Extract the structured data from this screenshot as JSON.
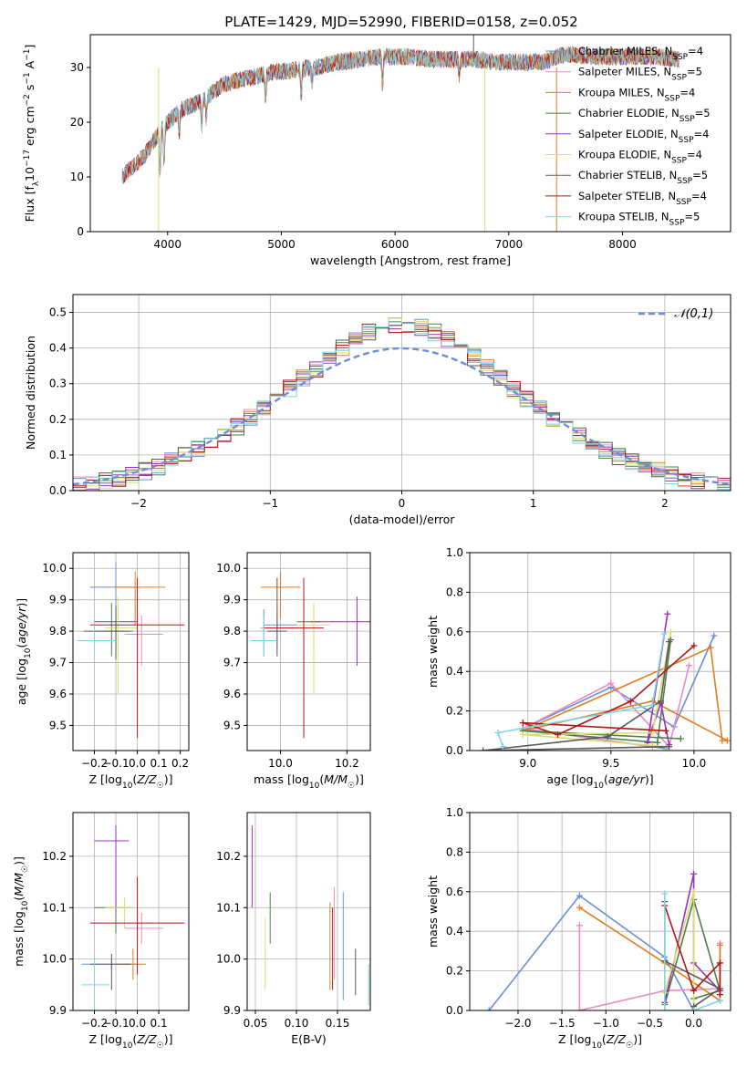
{
  "figure_title": "PLATE=1429, MJD=52990, FIBERID=0158, z=0.052",
  "colors": [
    "#6a8fd8",
    "#e88cc6",
    "#e07d22",
    "#4e7f4a",
    "#9a2fc0",
    "#d8e06a",
    "#5a5a5a",
    "#b01818",
    "#7fd6dc"
  ],
  "chart_data": [
    {
      "id": "spectrum",
      "type": "line",
      "xlabel": "wavelength [Angstrom, rest frame]",
      "ylabel": "Flux [f_λ10^-17 erg cm^-2 s^-1 A^-1]",
      "xlim": [
        3320,
        8950
      ],
      "ylim": [
        0,
        36
      ],
      "xticks": [
        4000,
        5000,
        6000,
        7000,
        8000
      ],
      "yticks": [
        0,
        10,
        20,
        30
      ],
      "grid": false,
      "legend_position": "top-right",
      "legend": [
        {
          "base": "Chabrier MILES, N",
          "sub": "SSP",
          "tail": "=4"
        },
        {
          "base": "Salpeter MILES, N",
          "sub": "SSP",
          "tail": "=5"
        },
        {
          "base": "Kroupa MILES, N",
          "sub": "SSP",
          "tail": "=4"
        },
        {
          "base": "Chabrier ELODIE, N",
          "sub": "SSP",
          "tail": "=5"
        },
        {
          "base": "Salpeter ELODIE, N",
          "sub": "SSP",
          "tail": "=4"
        },
        {
          "base": "Kroupa ELODIE, N",
          "sub": "SSP",
          "tail": "=4"
        },
        {
          "base": "Chabrier STELIB, N",
          "sub": "SSP",
          "tail": "=5"
        },
        {
          "base": "Salpeter STELIB, N",
          "sub": "SSP",
          "tail": "=4"
        },
        {
          "base": "Kroupa STELIB, N",
          "sub": "SSP",
          "tail": "=5"
        }
      ],
      "continuum": {
        "x": [
          3600,
          3800,
          3950,
          4100,
          4300,
          4500,
          4700,
          4900,
          5100,
          5300,
          5500,
          5700,
          5900,
          6100,
          6300,
          6500,
          6700,
          6900,
          7100,
          7300,
          7500,
          7700,
          7900,
          8100,
          8300,
          8500
        ],
        "y": [
          10,
          14,
          19,
          22,
          24,
          27,
          28,
          29,
          29.5,
          30,
          31,
          31.5,
          32,
          32,
          31.5,
          31.5,
          31.5,
          31,
          31,
          31,
          32.5,
          32,
          32,
          32,
          32,
          31.5
        ]
      },
      "dips": [
        {
          "x": 3933,
          "depth": 8
        },
        {
          "x": 3968,
          "depth": 7
        },
        {
          "x": 4102,
          "depth": 4
        },
        {
          "x": 4300,
          "depth": 5
        },
        {
          "x": 4340,
          "depth": 4
        },
        {
          "x": 4861,
          "depth": 4
        },
        {
          "x": 5175,
          "depth": 5
        },
        {
          "x": 5270,
          "depth": 3
        },
        {
          "x": 5890,
          "depth": 6
        },
        {
          "x": 6563,
          "depth": 3
        }
      ],
      "spikes": [
        {
          "x": 3920,
          "min": 0,
          "color_index": 5
        },
        {
          "x": 6790,
          "min": 0,
          "color_index": 5
        },
        {
          "x": 7420,
          "min": 0,
          "color_index": 2
        },
        {
          "x": 6690,
          "max": 36,
          "color_index": 6
        }
      ]
    },
    {
      "id": "residuals",
      "type": "histogram",
      "xlabel": "(data-model)/error",
      "ylabel": "Normed distribution",
      "xlim": [
        -2.5,
        2.5
      ],
      "ylim": [
        0,
        0.55
      ],
      "xticks": [
        -2,
        -1,
        0,
        1,
        2
      ],
      "yticks": [
        0.0,
        0.1,
        0.2,
        0.3,
        0.4,
        0.5
      ],
      "grid": true,
      "bin_width": 0.1,
      "legend_label": "𝒩(0,1)",
      "legend_position": "top-right",
      "normal_curve": {
        "mean": 0,
        "sigma": 1,
        "color": "#6a8fd8",
        "dashed": true
      }
    },
    {
      "id": "age-vs-Z",
      "type": "errorbar",
      "xlabel": "Z [log10(Z/Z☉)]",
      "ylabel": "age [log10(age/yr)]",
      "xlim": [
        -0.3,
        0.24
      ],
      "ylim": [
        9.42,
        10.05
      ],
      "xticks": [
        -0.2,
        -0.1,
        0.0,
        0.1,
        0.2
      ],
      "yticks": [
        9.5,
        9.6,
        9.7,
        9.8,
        9.9,
        10.0
      ],
      "grid": true,
      "points": [
        {
          "x": -0.1,
          "xerr": [
            0.12,
            0.1
          ],
          "y": 9.94,
          "yerr": [
            0.1,
            0.08
          ]
        },
        {
          "x": 0.02,
          "xerr": [
            0.08,
            0.1
          ],
          "y": 9.79,
          "yerr": [
            0.1,
            0.06
          ]
        },
        {
          "x": -0.01,
          "xerr": [
            0.1,
            0.14
          ],
          "y": 9.94,
          "yerr": [
            0.12,
            0.05
          ]
        },
        {
          "x": -0.12,
          "xerr": [
            0.08,
            0.1
          ],
          "y": 9.8,
          "yerr": [
            0.08,
            0.09
          ]
        },
        {
          "x": -0.1,
          "xerr": [
            0.1,
            0.1
          ],
          "y": 9.83,
          "yerr": [
            0.08,
            0.05
          ]
        },
        {
          "x": -0.09,
          "xerr": [
            0.06,
            0.09
          ],
          "y": 9.81,
          "yerr": [
            0.21,
            0.1
          ]
        },
        {
          "x": -0.1,
          "xerr": [
            0.15,
            0.06
          ],
          "y": 9.8,
          "yerr": [
            0.09,
            0.08
          ]
        },
        {
          "x": 0.0,
          "xerr": [
            0.22,
            0.22
          ],
          "y": 9.82,
          "yerr": [
            0.36,
            0.15
          ]
        },
        {
          "x": -0.2,
          "xerr": [
            0.08,
            0.1
          ],
          "y": 9.77,
          "yerr": [
            0.05,
            0.05
          ]
        }
      ]
    },
    {
      "id": "age-vs-mass",
      "type": "errorbar",
      "xlabel": "mass [log10(M/M☉)]",
      "ylabel": "",
      "xlim": [
        9.9,
        10.27
      ],
      "ylim": [
        9.42,
        10.05
      ],
      "xticks": [
        10.0,
        10.2
      ],
      "yticks": [
        9.5,
        9.6,
        9.7,
        9.8,
        9.9,
        10.0
      ],
      "grid": true,
      "points": [
        {
          "x": 9.95,
          "xerr": [
            0.0,
            0.1
          ],
          "y": 9.82,
          "yerr": [
            0.1,
            0.05
          ]
        },
        {
          "x": 9.99,
          "xerr": [
            0.05,
            0.05
          ],
          "y": 9.81,
          "yerr": [
            0.06,
            0.06
          ]
        },
        {
          "x": 10.0,
          "xerr": [
            0.06,
            0.06
          ],
          "y": 9.94,
          "yerr": [
            0.1,
            0.05
          ]
        },
        {
          "x": 10.1,
          "xerr": [
            0.05,
            0.02
          ],
          "y": 9.83,
          "yerr": [
            0.08,
            0.05
          ]
        },
        {
          "x": 10.23,
          "xerr": [
            0.14,
            0.06
          ],
          "y": 9.83,
          "yerr": [
            0.14,
            0.08
          ]
        },
        {
          "x": 10.1,
          "xerr": [
            0.05,
            0.05
          ],
          "y": 9.82,
          "yerr": [
            0.22,
            0.07
          ]
        },
        {
          "x": 9.99,
          "xerr": [
            0.03,
            0.03
          ],
          "y": 9.8,
          "yerr": [
            0.08,
            0.17
          ]
        },
        {
          "x": 10.07,
          "xerr": [
            0.12,
            0.06
          ],
          "y": 9.81,
          "yerr": [
            0.35,
            0.16
          ]
        },
        {
          "x": 9.95,
          "xerr": [
            0.04,
            0.04
          ],
          "y": 9.77,
          "yerr": [
            0.05,
            0.08
          ]
        }
      ]
    },
    {
      "id": "weight-vs-age",
      "type": "line",
      "xlabel": "age [log10(age/yr)]",
      "ylabel": "mass weight",
      "xlim": [
        8.65,
        10.22
      ],
      "ylim": [
        0,
        1
      ],
      "xticks": [
        9.0,
        9.5,
        10.0
      ],
      "yticks": [
        0.0,
        0.2,
        0.4,
        0.6,
        0.8,
        1.0
      ],
      "grid": true,
      "series": [
        {
          "x": [
            10.12,
            9.88,
            9.5,
            8.97,
            9.83
          ],
          "y": [
            0.58,
            0.12,
            0.32,
            0.11,
            0.01
          ]
        },
        {
          "x": [
            9.97,
            9.85,
            9.5,
            8.97,
            9.75
          ],
          "y": [
            0.43,
            0.02,
            0.34,
            0.11,
            0.02
          ]
        },
        {
          "x": [
            10.17,
            10.1,
            8.97,
            9.75,
            10.2
          ],
          "y": [
            0.05,
            0.52,
            0.1,
            0.25,
            0.05
          ]
        },
        {
          "x": [
            9.86,
            9.78,
            8.97,
            9.92
          ],
          "y": [
            0.56,
            0.04,
            0.1,
            0.06
          ]
        },
        {
          "x": [
            9.84,
            9.72,
            9.8,
            9.85
          ],
          "y": [
            0.69,
            0.04,
            0.24,
            0.03
          ]
        },
        {
          "x": [
            9.86,
            9.75,
            8.97,
            9.83
          ],
          "y": [
            0.6,
            0.09,
            0.08,
            0.02
          ]
        },
        {
          "x": [
            9.85,
            9.8,
            9.48,
            8.73,
            9.85
          ],
          "y": [
            0.55,
            0.25,
            0.07,
            0.0,
            0.02
          ]
        },
        {
          "x": [
            10.0,
            9.62,
            9.18,
            8.97,
            9.83
          ],
          "y": [
            0.53,
            0.25,
            0.08,
            0.14,
            0.1
          ]
        },
        {
          "x": [
            9.82,
            9.75,
            8.82,
            8.85
          ],
          "y": [
            0.59,
            0.23,
            0.09,
            0.02
          ]
        }
      ]
    },
    {
      "id": "mass-vs-Z",
      "type": "errorbar",
      "xlabel": "Z [log10(Z/Z☉)]",
      "ylabel": "mass [log10(M/M☉)]",
      "xlim": [
        -0.3,
        0.24
      ],
      "ylim": [
        9.9,
        10.285
      ],
      "xticks": [
        -0.2,
        -0.1,
        0.0,
        0.1
      ],
      "yticks": [
        9.9,
        10.0,
        10.1,
        10.2
      ],
      "grid": true,
      "points": [
        {
          "x": -0.12,
          "xerr": [
            0.14,
            0.12
          ],
          "y": 9.99,
          "yerr": [
            0.01,
            0.01
          ]
        },
        {
          "x": 0.02,
          "xerr": [
            0.08,
            0.1
          ],
          "y": 10.06,
          "yerr": [
            0.03,
            0.03
          ]
        },
        {
          "x": -0.02,
          "xerr": [
            0.08,
            0.06
          ],
          "y": 9.99,
          "yerr": [
            0.03,
            0.03
          ]
        },
        {
          "x": -0.1,
          "xerr": [
            0.1,
            0.08
          ],
          "y": 10.1,
          "yerr": [
            0.05,
            0.03
          ]
        },
        {
          "x": -0.1,
          "xerr": [
            0.1,
            0.06
          ],
          "y": 10.23,
          "yerr": [
            0.14,
            0.03
          ]
        },
        {
          "x": -0.06,
          "xerr": [
            0.09,
            0.04
          ],
          "y": 10.1,
          "yerr": [
            0.04,
            0.02
          ]
        },
        {
          "x": -0.12,
          "xerr": [
            0.1,
            0.09
          ],
          "y": 9.99,
          "yerr": [
            0.05,
            0.02
          ]
        },
        {
          "x": 0.0,
          "xerr": [
            0.22,
            0.22
          ],
          "y": 10.07,
          "yerr": [
            0.1,
            0.09
          ]
        },
        {
          "x": -0.2,
          "xerr": [
            0.06,
            0.07
          ],
          "y": 9.95,
          "yerr": [
            0.05,
            0.05
          ]
        }
      ]
    },
    {
      "id": "mass-vs-ebv",
      "type": "errorbar",
      "xlabel": "E(B-V)",
      "ylabel": "",
      "xlim": [
        0.04,
        0.19
      ],
      "ylim": [
        9.9,
        10.285
      ],
      "xticks": [
        0.05,
        0.1,
        0.15
      ],
      "yticks": [
        9.9,
        10.0,
        10.1,
        10.2
      ],
      "grid": true,
      "points": [
        {
          "x": 0.157,
          "y": 10.0,
          "yerr": [
            0.08,
            0.13
          ]
        },
        {
          "x": 0.146,
          "y": 10.05,
          "yerr": [
            0.09,
            0.09
          ]
        },
        {
          "x": 0.141,
          "y": 10.02,
          "yerr": [
            0.08,
            0.09
          ]
        },
        {
          "x": 0.068,
          "y": 10.07,
          "yerr": [
            0.04,
            0.06
          ]
        },
        {
          "x": 0.046,
          "y": 10.2,
          "yerr": [
            0.1,
            0.06
          ]
        },
        {
          "x": 0.062,
          "y": 10.0,
          "yerr": [
            0.06,
            0.08
          ]
        },
        {
          "x": 0.172,
          "y": 9.96,
          "yerr": [
            0.03,
            0.06
          ]
        },
        {
          "x": 0.144,
          "y": 10.03,
          "yerr": [
            0.09,
            0.07
          ]
        },
        {
          "x": 0.188,
          "y": 9.96,
          "yerr": [
            0.05,
            0.03
          ]
        }
      ]
    },
    {
      "id": "weight-vs-Z",
      "type": "line",
      "xlabel": "Z [log10(Z/Z☉)]",
      "ylabel": "mass weight",
      "xlim": [
        -2.55,
        0.42
      ],
      "ylim": [
        0,
        1
      ],
      "xticks": [
        -2.0,
        -1.5,
        -1.0,
        -0.5,
        0.0
      ],
      "yticks": [
        0.0,
        0.2,
        0.4,
        0.6,
        0.8,
        1.0
      ],
      "grid": true,
      "series": [
        {
          "x": [
            -2.33,
            -1.3,
            -0.33,
            0.0
          ],
          "y": [
            0.0,
            0.58,
            0.27,
            0.0
          ]
        },
        {
          "x": [
            -1.3,
            -1.3,
            -0.33,
            0.3,
            0.3
          ],
          "y": [
            0.43,
            0.0,
            0.1,
            0.11,
            0.34
          ]
        },
        {
          "x": [
            -1.3,
            -0.33,
            0.3,
            0.3
          ],
          "y": [
            0.52,
            0.24,
            0.05,
            0.33
          ]
        },
        {
          "x": [
            -0.33,
            0.0,
            0.3,
            0.0
          ],
          "y": [
            0.03,
            0.56,
            0.1,
            0.06
          ]
        },
        {
          "x": [
            -0.33,
            0.0,
            0.0,
            0.3
          ],
          "y": [
            0.04,
            0.69,
            0.24,
            0.1
          ]
        },
        {
          "x": [
            -0.33,
            0.0,
            0.0
          ],
          "y": [
            0.09,
            0.6,
            0.02
          ]
        },
        {
          "x": [
            -0.33,
            -0.33,
            0.3,
            0.0
          ],
          "y": [
            0.55,
            0.25,
            0.11,
            0.02
          ]
        },
        {
          "x": [
            -0.33,
            0.0,
            0.3,
            0.3
          ],
          "y": [
            0.53,
            0.1,
            0.24,
            0.08
          ]
        },
        {
          "x": [
            -0.33,
            -0.33,
            0.0,
            0.3
          ],
          "y": [
            0.59,
            0.0,
            0.0,
            0.05
          ]
        }
      ]
    }
  ]
}
